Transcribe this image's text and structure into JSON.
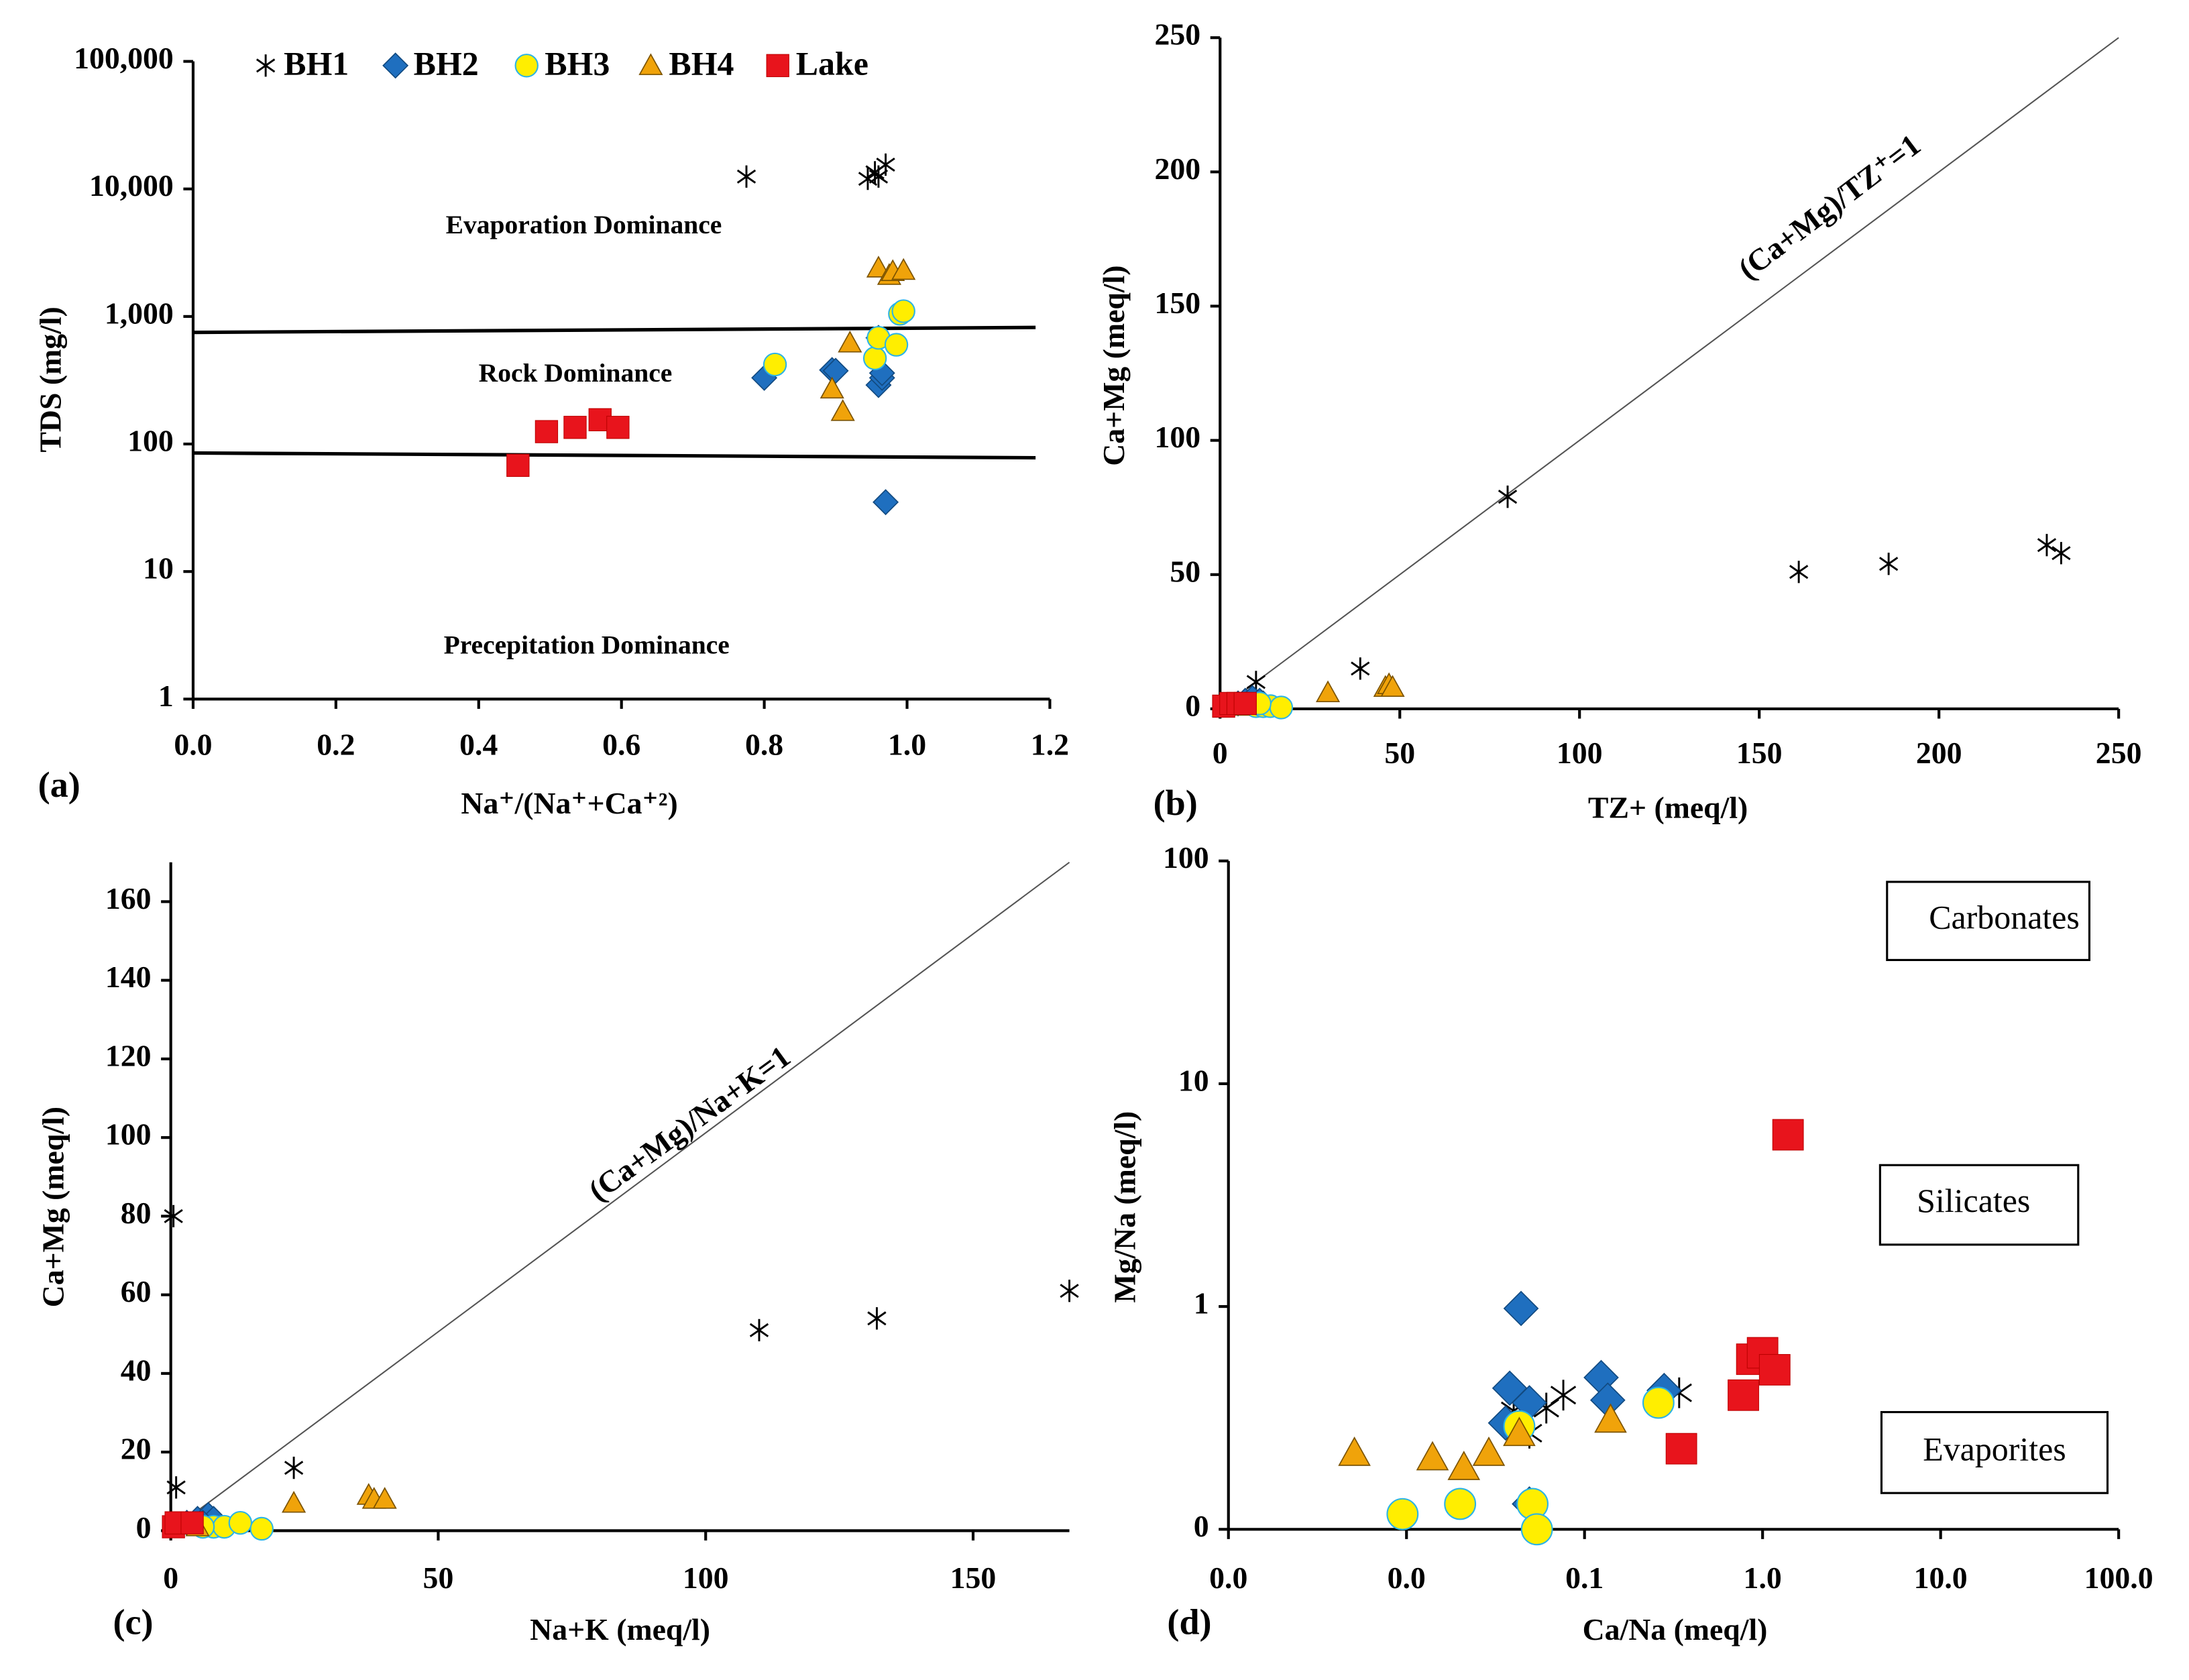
{
  "chart_data": [
    {
      "type": "scatter",
      "yscale": "log",
      "legend": "top",
      "xlabel": "Na⁺/(Na⁺+Ca⁺²)",
      "ylabel": "TDS (mg/l)",
      "panel_label": "(a)",
      "annotations": [
        "Evaporation Dominance",
        "Rock Dominance",
        "Precepitation Dominance"
      ],
      "xlim": [
        0,
        1.2
      ],
      "ylim": [
        1,
        100000
      ],
      "xticks": [
        {
          "value": 0,
          "label": "0.0"
        },
        0.2,
        0.4,
        0.6,
        0.8,
        {
          "value": 1,
          "label": "1.0"
        },
        1.2
      ],
      "yticks": [
        1,
        10,
        100,
        {
          "value": 1000,
          "label": "1,000"
        },
        {
          "value": 10000,
          "label": "10,000"
        },
        {
          "value": 100000,
          "label": "100,000"
        }
      ],
      "lines": [
        {
          "x": [
            0,
            1.18
          ],
          "y": [
            750,
            820
          ]
        },
        {
          "x": [
            0,
            1.18
          ],
          "y": [
            85,
            78
          ]
        }
      ],
      "series": [
        {
          "name": "BH1",
          "marker": "asterisk",
          "color": "#000000",
          "x": [
            0.775,
            0.945,
            0.955,
            0.96,
            0.97
          ],
          "y": [
            12500,
            12000,
            13500,
            12500,
            15500
          ]
        },
        {
          "name": "BH2",
          "marker": "diamond",
          "color": "#1f6fbf",
          "x": [
            0.8,
            0.895,
            0.9,
            0.96,
            0.965,
            0.965,
            0.97,
            0.96
          ],
          "y": [
            330,
            380,
            375,
            290,
            330,
            360,
            35,
            680
          ]
        },
        {
          "name": "BH3",
          "marker": "circle",
          "color": "#ffee00",
          "x": [
            0.815,
            0.955,
            0.96,
            0.985,
            0.99,
            0.995
          ],
          "y": [
            420,
            470,
            680,
            600,
            1050,
            1100
          ]
        },
        {
          "name": "BH4",
          "marker": "triangle",
          "color": "#f0a30a",
          "x": [
            0.895,
            0.91,
            0.92,
            0.96,
            0.975,
            0.98,
            0.995
          ],
          "y": [
            270,
            180,
            620,
            2400,
            2100,
            2250,
            2300
          ]
        },
        {
          "name": "Lake",
          "marker": "square",
          "color": "#e8141c",
          "x": [
            0.455,
            0.495,
            0.535,
            0.57,
            0.595
          ],
          "y": [
            68,
            125,
            135,
            155,
            135
          ]
        }
      ]
    },
    {
      "type": "scatter",
      "xlabel": "TZ+ (meq/l)",
      "ylabel": "Ca+Mg (meq/l)",
      "panel_label": "(b)",
      "annotations": [
        "(Ca+Mg)/TZ⁺=1"
      ],
      "xlim": [
        0,
        250
      ],
      "ylim": [
        0,
        250
      ],
      "xticks": [
        0,
        50,
        100,
        150,
        200,
        250
      ],
      "yticks": [
        0,
        50,
        100,
        150,
        200,
        250
      ],
      "lines": [
        {
          "x": [
            0,
            250
          ],
          "y": [
            0,
            250
          ]
        }
      ],
      "series": [
        {
          "marker": "asterisk",
          "color": "#000000",
          "x": [
            80,
            161,
            186,
            230,
            234,
            39,
            10,
            8
          ],
          "y": [
            79,
            51,
            54,
            61,
            58,
            15,
            10,
            3
          ]
        },
        {
          "marker": "diamond",
          "color": "#1f6fbf",
          "x": [
            5,
            7,
            9,
            11,
            12
          ],
          "y": [
            2,
            3,
            4,
            3,
            2
          ]
        },
        {
          "marker": "circle",
          "color": "#ffee00",
          "x": [
            10,
            12,
            14,
            17,
            11
          ],
          "y": [
            1,
            1,
            1,
            0.5,
            2
          ]
        },
        {
          "marker": "triangle",
          "color": "#f0a30a",
          "x": [
            30,
            46,
            47,
            48,
            5
          ],
          "y": [
            6,
            8,
            9,
            8,
            1
          ]
        },
        {
          "marker": "square",
          "color": "#e8141c",
          "x": [
            1,
            3,
            5,
            7
          ],
          "y": [
            1,
            2,
            2,
            2
          ]
        }
      ]
    },
    {
      "type": "scatter",
      "xlabel": "Na+K (meq/l)",
      "ylabel": "Ca+Mg (meq/l)",
      "panel_label": "(c)",
      "annotations": [
        "(Ca+Mg)/Na+K=1"
      ],
      "xlim": [
        0,
        168
      ],
      "ylim": [
        0,
        170
      ],
      "xticks": [
        0,
        50,
        100,
        150
      ],
      "yticks": [
        0,
        20,
        40,
        60,
        80,
        100,
        120,
        140,
        160
      ],
      "lines": [
        {
          "x": [
            0,
            168
          ],
          "y": [
            0,
            170
          ]
        }
      ],
      "series": [
        {
          "marker": "asterisk",
          "color": "#000000",
          "x": [
            0.5,
            110,
            132,
            168,
            1,
            23
          ],
          "y": [
            80,
            51,
            54,
            61,
            11,
            16
          ]
        },
        {
          "marker": "diamond",
          "color": "#1f6fbf",
          "x": [
            5,
            7,
            8,
            3,
            6
          ],
          "y": [
            3,
            4,
            3,
            2,
            2
          ]
        },
        {
          "marker": "circle",
          "color": "#ffee00",
          "x": [
            8,
            10,
            13,
            17,
            6
          ],
          "y": [
            1,
            1,
            2,
            0.5,
            1
          ]
        },
        {
          "marker": "triangle",
          "color": "#f0a30a",
          "x": [
            23,
            37,
            38,
            40,
            5
          ],
          "y": [
            7,
            9,
            8,
            8,
            1
          ]
        },
        {
          "marker": "square",
          "color": "#e8141c",
          "x": [
            0.5,
            1,
            4
          ],
          "y": [
            1,
            2,
            2
          ]
        }
      ]
    },
    {
      "type": "scatter",
      "xscale": "log",
      "yscale": "log",
      "xlabel": "Ca/Na (meq/l)",
      "ylabel": "Mg/Na (meq/l)",
      "panel_label": "(d)",
      "annotations": [
        "Carbonates",
        "Silicates",
        "Evaporites"
      ],
      "xlim": [
        0.001,
        100
      ],
      "ylim": [
        0.1,
        100
      ],
      "xticks": [
        {
          "value": 0.001,
          "label": "0.0"
        },
        {
          "value": 0.01,
          "label": "0.0"
        },
        {
          "value": 0.1,
          "label": "0.1"
        },
        {
          "value": 1,
          "label": "1.0"
        },
        {
          "value": 10,
          "label": "10.0"
        },
        {
          "value": 100,
          "label": "100.0"
        }
      ],
      "yticks": [
        {
          "value": 0.1,
          "label": "0"
        },
        1,
        10,
        100
      ],
      "series": [
        {
          "marker": "asterisk",
          "color": "#000000",
          "x": [
            0.04,
            0.061,
            0.076,
            0.34,
            0.049
          ],
          "y": [
            0.34,
            0.35,
            0.4,
            0.41,
            0.27
          ]
        },
        {
          "marker": "diamond",
          "color": "#1f6fbf",
          "x": [
            0.044,
            0.124,
            0.135,
            0.038,
            0.049,
            0.036,
            0.28,
            0.049
          ],
          "y": [
            0.98,
            0.48,
            0.38,
            0.43,
            0.37,
            0.3,
            0.42,
            0.13
          ]
        },
        {
          "marker": "circle",
          "color": "#ffee00",
          "x": [
            0.0095,
            0.02,
            0.051,
            0.054,
            0.26,
            0.043
          ],
          "y": [
            0.117,
            0.13,
            0.13,
            0.1,
            0.37,
            0.29
          ]
        },
        {
          "marker": "triangle",
          "color": "#f0a30a",
          "x": [
            0.0051,
            0.014,
            0.021,
            0.029,
            0.043,
            0.14
          ],
          "y": [
            0.22,
            0.21,
            0.19,
            0.22,
            0.27,
            0.31
          ]
        },
        {
          "marker": "square",
          "color": "#e8141c",
          "x": [
            1.39,
            0.87,
            1.0,
            1.17,
            0.78,
            0.35
          ],
          "y": [
            5.9,
            0.58,
            0.62,
            0.52,
            0.4,
            0.23
          ]
        }
      ]
    }
  ]
}
